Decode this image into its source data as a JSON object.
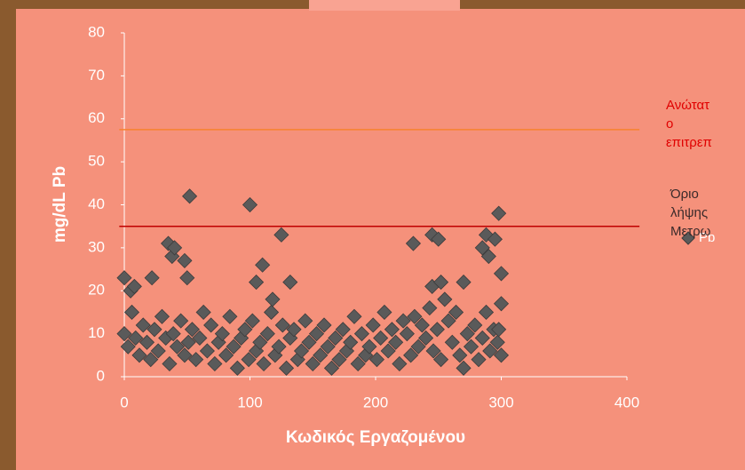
{
  "chart_data": {
    "type": "scatter",
    "xlabel": "Κωδικός  Εργαζομένου",
    "ylabel": "mg/dL  Pb",
    "xlim": [
      0,
      400
    ],
    "xticks": [
      0,
      100,
      200,
      300,
      400
    ],
    "ylim": [
      0,
      80
    ],
    "yticks": [
      0,
      10,
      20,
      30,
      40,
      50,
      60,
      70,
      80
    ],
    "series": [
      {
        "name": "Ανώτατ\nο\nεπιτρεπ",
        "kind": "line",
        "color": "#f7822f",
        "x": [
          -4,
          410
        ],
        "values": [
          57.5,
          57.5
        ]
      },
      {
        "name": "Όριο\nλήψης\nΜετρω",
        "kind": "line",
        "color": "#c00000",
        "x": [
          -4,
          410
        ],
        "values": [
          35,
          35
        ]
      },
      {
        "name": "Pb",
        "kind": "scatter",
        "color": "#5a5a5a",
        "x": [
          0,
          3,
          6,
          9,
          12,
          15,
          18,
          21,
          24,
          27,
          30,
          33,
          36,
          39,
          42,
          45,
          48,
          51,
          54,
          57,
          60,
          63,
          66,
          69,
          72,
          75,
          78,
          81,
          84,
          87,
          90,
          93,
          96,
          99,
          102,
          105,
          108,
          111,
          114,
          117,
          120,
          123,
          126,
          129,
          132,
          135,
          138,
          141,
          144,
          147,
          150,
          153,
          156,
          159,
          162,
          165,
          168,
          171,
          174,
          177,
          180,
          183,
          186,
          189,
          192,
          195,
          198,
          201,
          204,
          207,
          210,
          213,
          216,
          219,
          222,
          225,
          228,
          231,
          234,
          237,
          240,
          243,
          246,
          249,
          252,
          255,
          258,
          261,
          264,
          267,
          270,
          273,
          276,
          279,
          282,
          285,
          288,
          291,
          294,
          297,
          300,
          0,
          5,
          8,
          22,
          35,
          38,
          40,
          48,
          50,
          52,
          100,
          105,
          110,
          118,
          125,
          132,
          230,
          245,
          250,
          245,
          252,
          270,
          285,
          288,
          290,
          295,
          298,
          300,
          300,
          298
        ],
        "values": [
          10,
          7,
          15,
          9,
          5,
          12,
          8,
          4,
          11,
          6,
          14,
          9,
          3,
          10,
          7,
          13,
          5,
          8,
          11,
          4,
          9,
          15,
          6,
          12,
          3,
          8,
          10,
          5,
          14,
          7,
          2,
          9,
          11,
          4,
          13,
          6,
          8,
          3,
          10,
          15,
          5,
          7,
          12,
          2,
          9,
          11,
          4,
          6,
          13,
          8,
          3,
          10,
          5,
          12,
          7,
          2,
          9,
          4,
          11,
          6,
          8,
          14,
          3,
          10,
          5,
          7,
          12,
          4,
          9,
          15,
          6,
          11,
          8,
          3,
          13,
          10,
          5,
          14,
          7,
          12,
          9,
          16,
          6,
          11,
          4,
          18,
          13,
          8,
          15,
          5,
          2,
          10,
          7,
          12,
          4,
          9,
          15,
          6,
          11,
          8,
          5,
          23,
          20,
          21,
          23,
          31,
          28,
          30,
          27,
          23,
          42,
          40,
          22,
          26,
          18,
          33,
          22,
          31,
          33,
          32,
          21,
          22,
          22,
          30,
          33,
          28,
          32,
          38,
          24,
          17,
          11
        ]
      }
    ]
  }
}
